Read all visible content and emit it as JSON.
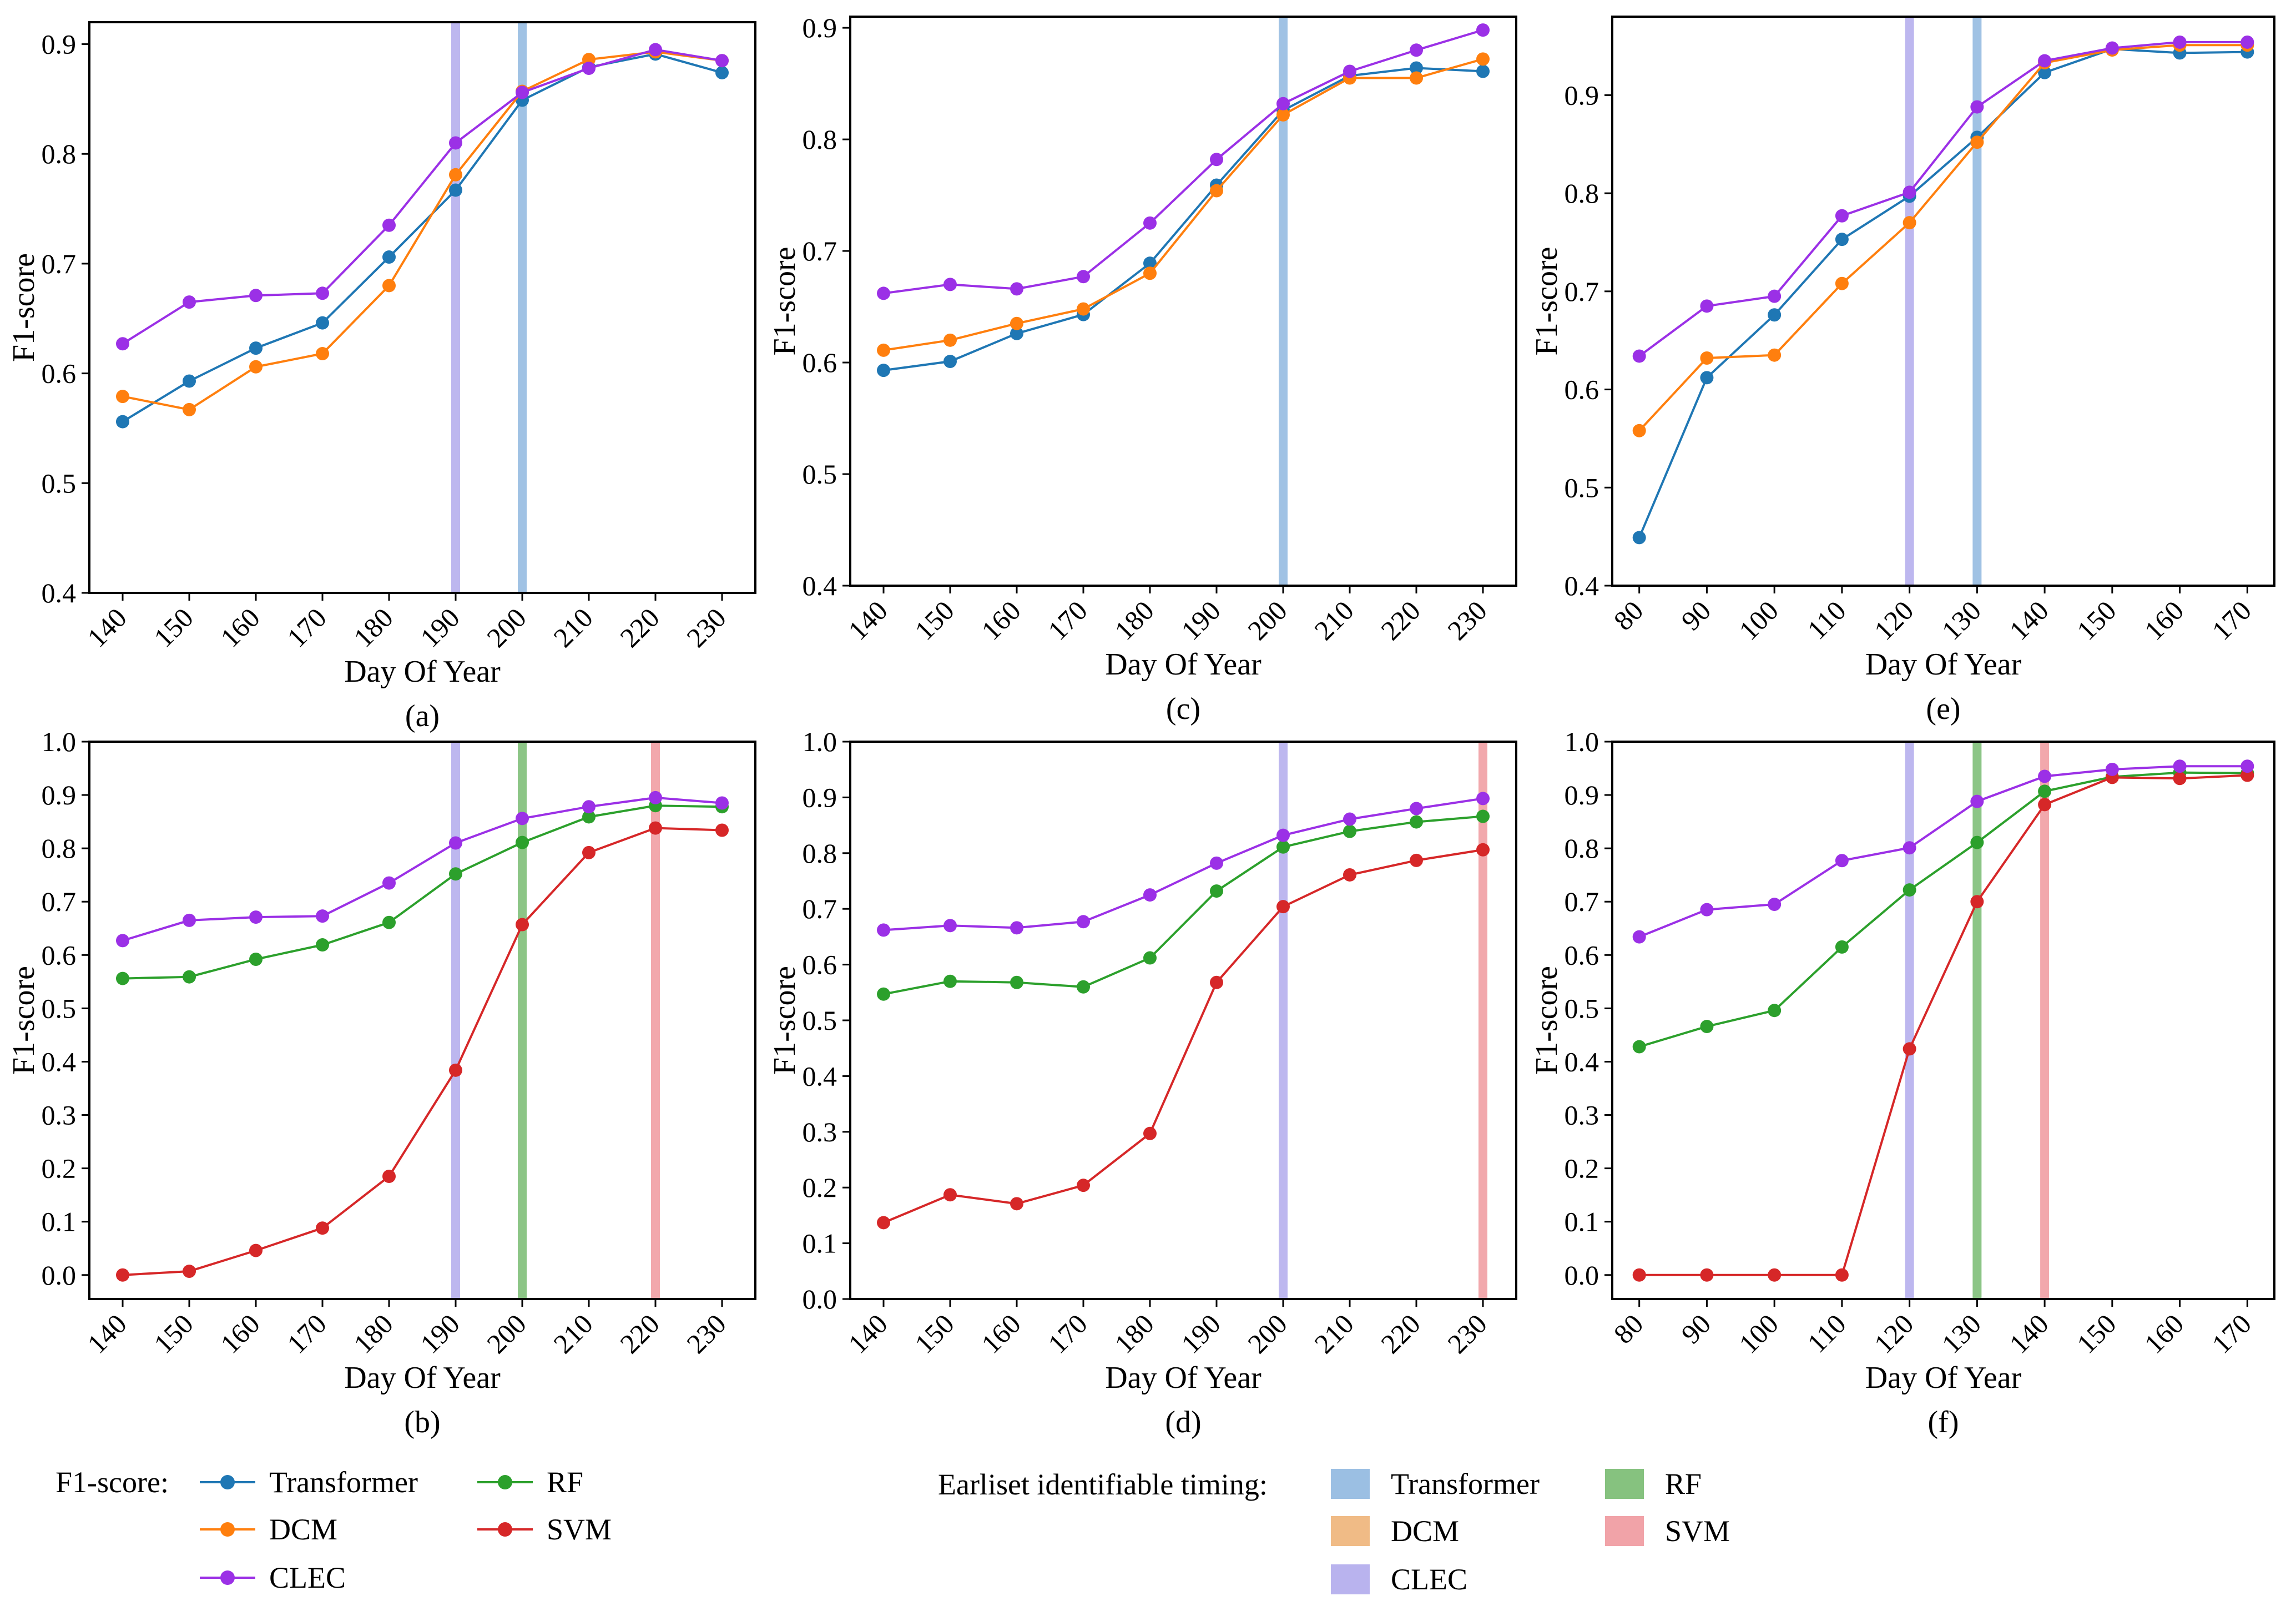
{
  "colors": {
    "Transformer": "#1f77b4",
    "DCM": "#ff7f0e",
    "CLEC": "#9b30e6",
    "RF": "#2ca02c",
    "SVM": "#d62728",
    "band_Transformer": "#9bbfe3",
    "band_DCM": "#f0bb86",
    "band_CLEC": "#b9b3ee",
    "band_RF": "#86c27f",
    "band_SVM": "#f1a3a8"
  },
  "legend": {
    "f1_title": "F1-score:",
    "f1_items": [
      "Transformer",
      "DCM",
      "CLEC",
      "RF",
      "SVM"
    ],
    "timing_title": "Earliset identifiable timing:",
    "timing_items": [
      "Transformer",
      "DCM",
      "CLEC",
      "RF",
      "SVM"
    ]
  },
  "chart_data": [
    {
      "type": "line",
      "panel": "(a)",
      "xlabel": "Day Of Year",
      "ylabel": "F1-score",
      "x": [
        140,
        150,
        160,
        170,
        180,
        190,
        200,
        210,
        220,
        230
      ],
      "xlim": [
        135,
        235
      ],
      "ylim": [
        0.4,
        0.92
      ],
      "yticks": [
        0.4,
        0.5,
        0.6,
        0.7,
        0.8,
        0.9
      ],
      "series": [
        {
          "name": "Transformer",
          "values": [
            0.556,
            0.593,
            0.623,
            0.646,
            0.706,
            0.767,
            0.849,
            0.879,
            0.891,
            0.874
          ]
        },
        {
          "name": "DCM",
          "values": [
            0.579,
            0.567,
            0.606,
            0.618,
            0.68,
            0.781,
            0.857,
            0.886,
            0.893,
            0.885
          ]
        },
        {
          "name": "CLEC",
          "values": [
            0.627,
            0.665,
            0.671,
            0.673,
            0.735,
            0.81,
            0.856,
            0.878,
            0.895,
            0.885
          ]
        }
      ],
      "bands": [
        {
          "name": "CLEC",
          "x": 190
        },
        {
          "name": "Transformer",
          "x": 200
        }
      ]
    },
    {
      "type": "line",
      "panel": "(b)",
      "xlabel": "Day Of Year",
      "ylabel": "F1-score",
      "x": [
        140,
        150,
        160,
        170,
        180,
        190,
        200,
        210,
        220,
        230
      ],
      "xlim": [
        135,
        235
      ],
      "ylim": [
        -0.045,
        1.0
      ],
      "yticks": [
        0.0,
        0.1,
        0.2,
        0.3,
        0.4,
        0.5,
        0.6,
        0.7,
        0.8,
        0.9,
        1.0
      ],
      "series": [
        {
          "name": "RF",
          "values": [
            0.556,
            0.559,
            0.592,
            0.619,
            0.661,
            0.752,
            0.811,
            0.859,
            0.88,
            0.878
          ]
        },
        {
          "name": "SVM",
          "values": [
            0.0,
            0.007,
            0.046,
            0.088,
            0.185,
            0.384,
            0.657,
            0.792,
            0.838,
            0.834
          ]
        },
        {
          "name": "CLEC",
          "values": [
            0.627,
            0.665,
            0.671,
            0.673,
            0.735,
            0.81,
            0.856,
            0.878,
            0.895,
            0.885
          ]
        }
      ],
      "bands": [
        {
          "name": "CLEC",
          "x": 190
        },
        {
          "name": "RF",
          "x": 200
        },
        {
          "name": "SVM",
          "x": 220
        }
      ]
    },
    {
      "type": "line",
      "panel": "(c)",
      "xlabel": "Day Of Year",
      "ylabel": "F1-score",
      "x": [
        140,
        150,
        160,
        170,
        180,
        190,
        200,
        210,
        220,
        230
      ],
      "xlim": [
        135,
        235
      ],
      "ylim": [
        0.4,
        0.91
      ],
      "yticks": [
        0.4,
        0.5,
        0.6,
        0.7,
        0.8,
        0.9
      ],
      "series": [
        {
          "name": "Transformer",
          "values": [
            0.593,
            0.601,
            0.626,
            0.643,
            0.689,
            0.759,
            0.826,
            0.857,
            0.864,
            0.861
          ]
        },
        {
          "name": "DCM",
          "values": [
            0.611,
            0.62,
            0.635,
            0.648,
            0.68,
            0.754,
            0.822,
            0.855,
            0.855,
            0.872
          ]
        },
        {
          "name": "CLEC",
          "values": [
            0.662,
            0.67,
            0.666,
            0.677,
            0.725,
            0.782,
            0.832,
            0.861,
            0.88,
            0.898
          ]
        }
      ],
      "bands": [
        {
          "name": "Transformer",
          "x": 200
        }
      ]
    },
    {
      "type": "line",
      "panel": "(d)",
      "xlabel": "Day Of Year",
      "ylabel": "F1-score",
      "x": [
        140,
        150,
        160,
        170,
        180,
        190,
        200,
        210,
        220,
        230
      ],
      "xlim": [
        135,
        235
      ],
      "ylim": [
        0.0,
        1.0
      ],
      "yticks": [
        0.0,
        0.1,
        0.2,
        0.3,
        0.4,
        0.5,
        0.6,
        0.7,
        0.8,
        0.9,
        1.0
      ],
      "series": [
        {
          "name": "RF",
          "values": [
            0.547,
            0.57,
            0.568,
            0.56,
            0.612,
            0.732,
            0.811,
            0.839,
            0.856,
            0.866
          ]
        },
        {
          "name": "SVM",
          "values": [
            0.137,
            0.187,
            0.171,
            0.204,
            0.297,
            0.568,
            0.704,
            0.761,
            0.787,
            0.806
          ]
        },
        {
          "name": "CLEC",
          "values": [
            0.662,
            0.67,
            0.666,
            0.677,
            0.725,
            0.782,
            0.832,
            0.861,
            0.88,
            0.898
          ]
        }
      ],
      "bands": [
        {
          "name": "CLEC",
          "x": 200
        },
        {
          "name": "SVM",
          "x": 230
        }
      ]
    },
    {
      "type": "line",
      "panel": "(e)",
      "xlabel": "Day Of Year",
      "ylabel": "F1-score",
      "x": [
        80,
        90,
        100,
        110,
        120,
        130,
        140,
        150,
        160,
        170
      ],
      "xlim": [
        76,
        174
      ],
      "ylim": [
        0.4,
        0.98
      ],
      "yticks": [
        0.4,
        0.5,
        0.6,
        0.7,
        0.8,
        0.9
      ],
      "series": [
        {
          "name": "Transformer",
          "values": [
            0.449,
            0.612,
            0.676,
            0.753,
            0.797,
            0.857,
            0.923,
            0.947,
            0.943,
            0.944
          ]
        },
        {
          "name": "DCM",
          "values": [
            0.558,
            0.632,
            0.635,
            0.708,
            0.77,
            0.852,
            0.933,
            0.946,
            0.951,
            0.951
          ]
        },
        {
          "name": "CLEC",
          "values": [
            0.634,
            0.685,
            0.695,
            0.777,
            0.801,
            0.888,
            0.935,
            0.948,
            0.954,
            0.954
          ]
        }
      ],
      "bands": [
        {
          "name": "CLEC",
          "x": 120
        },
        {
          "name": "Transformer",
          "x": 130
        }
      ]
    },
    {
      "type": "line",
      "panel": "(f)",
      "xlabel": "Day Of Year",
      "ylabel": "F1-score",
      "x": [
        80,
        90,
        100,
        110,
        120,
        130,
        140,
        150,
        160,
        170
      ],
      "xlim": [
        76,
        174
      ],
      "ylim": [
        -0.045,
        1.0
      ],
      "yticks": [
        0.0,
        0.1,
        0.2,
        0.3,
        0.4,
        0.5,
        0.6,
        0.7,
        0.8,
        0.9,
        1.0
      ],
      "series": [
        {
          "name": "RF",
          "values": [
            0.428,
            0.466,
            0.496,
            0.615,
            0.722,
            0.811,
            0.907,
            0.934,
            0.942,
            0.941
          ]
        },
        {
          "name": "SVM",
          "values": [
            0.0,
            0.0,
            0.0,
            0.0,
            0.424,
            0.7,
            0.882,
            0.933,
            0.931,
            0.937
          ]
        },
        {
          "name": "CLEC",
          "values": [
            0.634,
            0.685,
            0.695,
            0.777,
            0.801,
            0.888,
            0.935,
            0.948,
            0.954,
            0.954
          ]
        }
      ],
      "bands": [
        {
          "name": "CLEC",
          "x": 120
        },
        {
          "name": "RF",
          "x": 130
        },
        {
          "name": "SVM",
          "x": 140
        }
      ]
    }
  ]
}
